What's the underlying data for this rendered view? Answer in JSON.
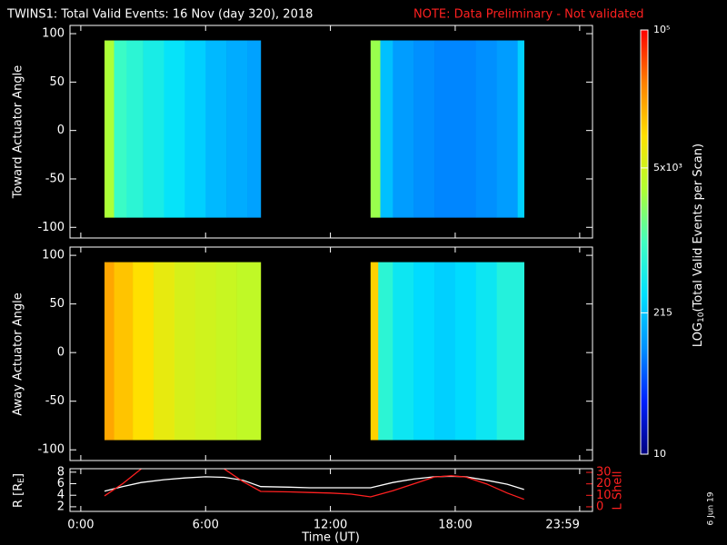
{
  "title": "TWINS1: Total Valid Events: 16 Nov (day 320), 2018",
  "note": "NOTE: Data Preliminary - Not validated",
  "date_stamp": "6 Jun 19",
  "colorbar": {
    "label_prefix": "LOG",
    "label_sub": "10",
    "label_suffix": "(Total Valid Events per Scan)",
    "log": true,
    "lim": [
      10,
      100000
    ],
    "ticks": [
      10,
      215,
      {
        "value": 5000,
        "label": "5x10³"
      },
      {
        "value": 100000,
        "label": "10⁵"
      }
    ],
    "colormap": [
      "#000080",
      "#0020ff",
      "#0090ff",
      "#00e0ff",
      "#40ffc0",
      "#b0ff30",
      "#ffe000",
      "#ff8000",
      "#ff0000"
    ]
  },
  "chart_data": [
    {
      "type": "heatmap",
      "ylabel": "Toward Actuator Angle",
      "ylim": [
        -111,
        108.5
      ],
      "yticks": [
        100,
        50,
        0,
        -50,
        -100
      ],
      "angle_range": [
        -90,
        93
      ],
      "series": [
        {
          "bins": [
            1.14,
            1.6,
            2.2,
            3.0,
            4.0,
            5.0,
            6.0,
            7.0,
            8.0,
            8.65
          ],
          "values": [
            3000,
            900,
            700,
            500,
            350,
            250,
            180,
            150,
            130
          ]
        },
        {
          "bins": [
            13.93,
            14.4,
            15,
            16,
            17,
            18,
            19,
            20,
            21,
            21.31
          ],
          "values": [
            2500,
            200,
            120,
            100,
            90,
            90,
            100,
            120,
            250
          ]
        }
      ]
    },
    {
      "type": "heatmap",
      "ylabel": "Away Actuator Angle",
      "ylim": [
        -111,
        108.5
      ],
      "yticks": [
        100,
        50,
        0,
        -50,
        -100
      ],
      "angle_range": [
        -90,
        93
      ],
      "series": [
        {
          "bins": [
            1.14,
            1.6,
            2.5,
            3.5,
            4.5,
            5.5,
            6.5,
            7.5,
            8.65
          ],
          "values": [
            20000,
            14000,
            10000,
            7000,
            5500,
            5000,
            4500,
            4000
          ]
        },
        {
          "bins": [
            13.93,
            14.3,
            15,
            16,
            17,
            18,
            19,
            20,
            21.31
          ],
          "values": [
            12000,
            700,
            400,
            300,
            250,
            300,
            400,
            600
          ]
        }
      ]
    },
    {
      "type": "line",
      "xlabel": "Time (UT)",
      "xlim": [
        -0.52,
        24.6
      ],
      "xticks": [
        {
          "value": 0,
          "label": "0:00"
        },
        {
          "value": 6,
          "label": "6:00"
        },
        {
          "value": 12,
          "label": "12:00"
        },
        {
          "value": 18,
          "label": "18:00"
        },
        {
          "value": 23.983,
          "label": "23:59"
        }
      ],
      "ylabel_prefix": "R [R",
      "ylabel_sub": "E",
      "ylabel_suffix": "]",
      "ylim": [
        1.2,
        8.6
      ],
      "yticks": [
        2,
        4,
        6,
        8
      ],
      "y2label": "L Shell",
      "y2lim": [
        -4,
        33.2
      ],
      "y2ticks": [
        0,
        10,
        20,
        30
      ],
      "x": [
        1.14,
        2,
        2.9,
        4,
        5,
        6,
        6.9,
        7.8,
        8.65,
        10,
        11,
        12,
        13,
        13.93,
        15,
        16,
        17,
        17.8,
        18.5,
        19.5,
        20.5,
        21.31
      ],
      "series": [
        {
          "name": "R",
          "color": "#ffffff",
          "values": [
            4.7,
            5.5,
            6.2,
            6.7,
            7.0,
            7.2,
            7.1,
            6.6,
            5.5,
            5.4,
            5.3,
            5.3,
            5.3,
            5.3,
            6.2,
            6.8,
            7.2,
            7.3,
            7.2,
            6.6,
            5.9,
            5.0
          ]
        },
        {
          "name": "L Shell",
          "color": "#ff2020",
          "axis": "y2",
          "values": [
            9.5,
            20,
            33,
            null,
            null,
            null,
            33,
            22,
            13.4,
            13,
            12.5,
            12,
            11,
            8.7,
            14,
            20,
            26,
            27,
            26,
            20,
            12,
            6.5
          ]
        }
      ]
    }
  ]
}
